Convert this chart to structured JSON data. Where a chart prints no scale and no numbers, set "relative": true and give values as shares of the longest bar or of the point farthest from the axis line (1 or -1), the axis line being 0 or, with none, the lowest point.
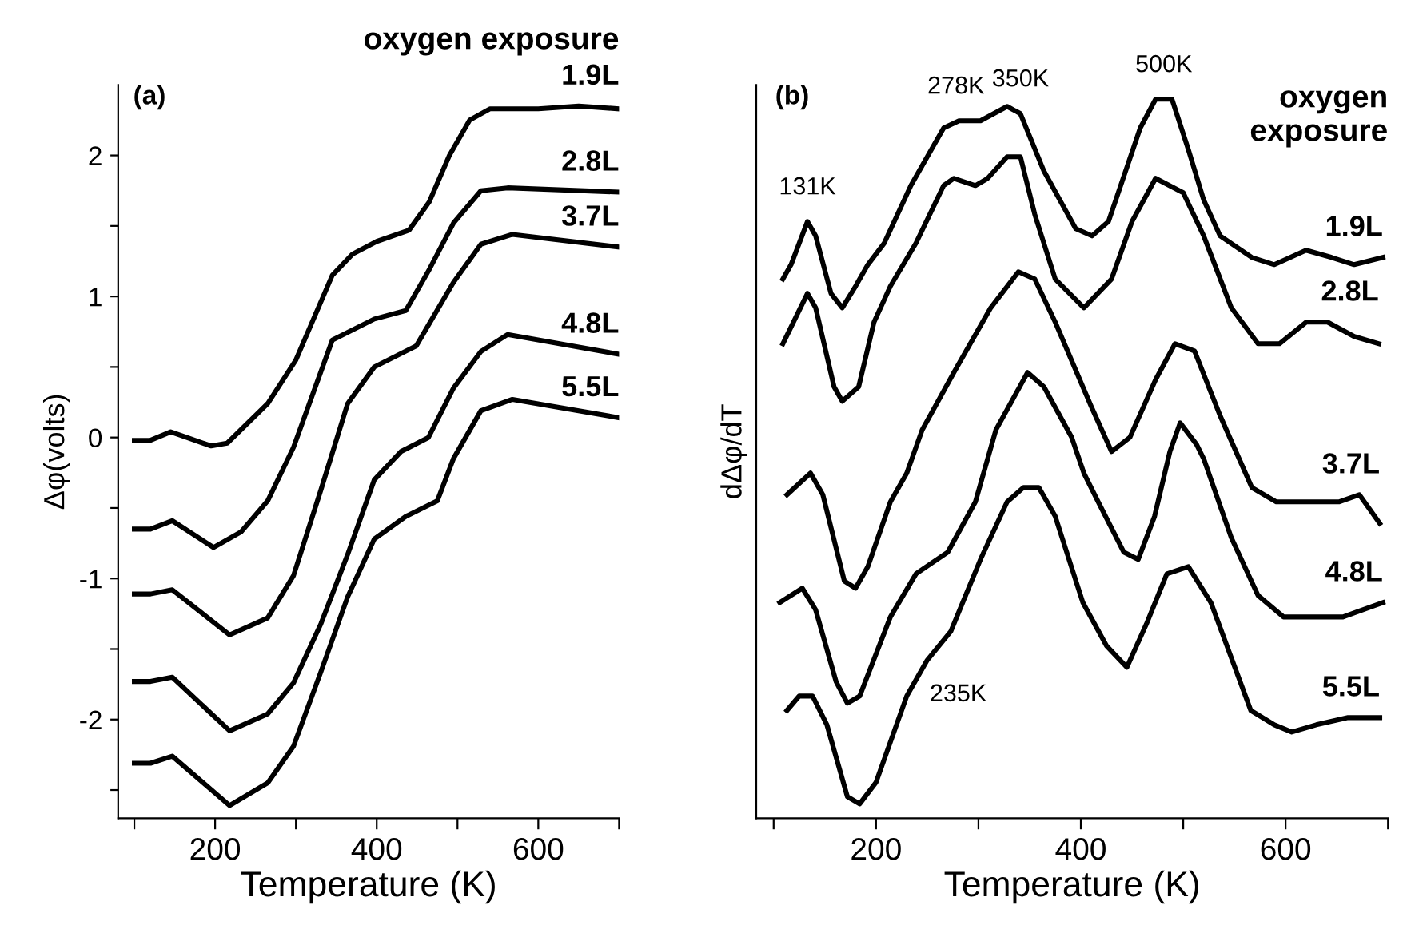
{
  "chart_data": [
    {
      "type": "line",
      "title": "oxygen exposure",
      "ylabel": "Δφ(volts)",
      "xlabel": "Temperature (K)",
      "xlim": [
        80,
        700
      ],
      "ylim": [
        -2.7,
        2.5
      ],
      "xticks": [
        {
          "value": 100,
          "label": null
        },
        200,
        {
          "value": 300,
          "label": null
        },
        400,
        {
          "value": 500,
          "label": null
        },
        600,
        {
          "value": 700,
          "label": null
        }
      ],
      "yticks": [
        {
          "value": -2.5,
          "label": null
        },
        -2,
        {
          "value": -1.5,
          "label": null
        },
        -1,
        {
          "value": -0.5,
          "label": null
        },
        0,
        {
          "value": 0.5,
          "label": null
        },
        1,
        {
          "value": 1.5,
          "label": null
        },
        2
      ],
      "grid": false,
      "legend": false,
      "marker": "none",
      "line_style": "solid",
      "annotations": [
        "(a)"
      ],
      "series": [
        {
          "name": "1.9L",
          "color": "#000000",
          "x": [
            100,
            120,
            145,
            165,
            195,
            215,
            240,
            265,
            300,
            345,
            370,
            400,
            440,
            465,
            490,
            515,
            540,
            600,
            650,
            700
          ],
          "values": [
            -0.02,
            -0.02,
            0.04,
            0.0,
            -0.06,
            -0.04,
            0.1,
            0.24,
            0.55,
            1.15,
            1.3,
            1.39,
            1.47,
            1.67,
            2.0,
            2.25,
            2.33,
            2.33,
            2.35,
            2.33
          ]
        },
        {
          "name": "2.8L",
          "color": "#000000",
          "x": [
            100,
            120,
            147,
            198,
            232,
            265,
            297,
            345,
            397,
            436,
            464,
            495,
            529,
            562,
            700
          ],
          "values": [
            -0.65,
            -0.65,
            -0.59,
            -0.78,
            -0.67,
            -0.45,
            -0.07,
            0.69,
            0.84,
            0.9,
            1.18,
            1.52,
            1.75,
            1.77,
            1.74
          ]
        },
        {
          "name": "3.7L",
          "color": "#000000",
          "x": [
            100,
            120,
            147,
            218,
            265,
            297,
            331,
            364,
            397,
            449,
            495,
            529,
            568,
            700
          ],
          "values": [
            -1.11,
            -1.11,
            -1.08,
            -1.4,
            -1.28,
            -0.98,
            -0.37,
            0.24,
            0.5,
            0.65,
            1.1,
            1.37,
            1.44,
            1.35
          ]
        },
        {
          "name": "4.8L",
          "color": "#000000",
          "x": [
            100,
            120,
            147,
            218,
            265,
            297,
            331,
            364,
            397,
            430,
            464,
            495,
            529,
            562,
            700
          ],
          "values": [
            -1.73,
            -1.73,
            -1.7,
            -2.08,
            -1.96,
            -1.74,
            -1.32,
            -0.83,
            -0.3,
            -0.1,
            0.0,
            0.35,
            0.61,
            0.73,
            0.59
          ]
        },
        {
          "name": "5.5L",
          "color": "#000000",
          "x": [
            100,
            120,
            147,
            218,
            265,
            297,
            331,
            364,
            397,
            436,
            475,
            495,
            529,
            568,
            700
          ],
          "values": [
            -2.31,
            -2.31,
            -2.26,
            -2.61,
            -2.45,
            -2.19,
            -1.66,
            -1.13,
            -0.72,
            -0.56,
            -0.45,
            -0.15,
            0.19,
            0.27,
            0.14
          ]
        }
      ]
    },
    {
      "type": "line",
      "relative": true,
      "title": "oxygen\nexposure",
      "ylabel": "dΔφ/dT",
      "xlabel": "Temperature (K)",
      "xlim": [
        83,
        700
      ],
      "xticks": [
        {
          "value": 100,
          "label": null
        },
        200,
        {
          "value": 300,
          "label": null
        },
        400,
        {
          "value": 500,
          "label": null
        },
        600,
        {
          "value": 700,
          "label": null
        }
      ],
      "tick_labels": "x",
      "grid": false,
      "legend": false,
      "marker": "none",
      "line_style": "solid",
      "annotations": [
        "(b)",
        {
          "text": "131K",
          "x": 133,
          "y": 0.83
        },
        {
          "text": "278K",
          "x": 278,
          "y": 0.97
        },
        {
          "text": "350K",
          "x": 341,
          "y": 0.98
        },
        {
          "text": "500K",
          "x": 481,
          "y": 1.0
        },
        {
          "text": "235K",
          "x": 235,
          "y": 0.19
        }
      ],
      "series": [
        {
          "name": "1.9L",
          "color": "#000000",
          "x": [
            109,
            117,
            133,
            141,
            156,
            167,
            180,
            192,
            208,
            234,
            266,
            281,
            302,
            328,
            341,
            364,
            395,
            411,
            427,
            458,
            473,
            489,
            505,
            520,
            536,
            567,
            589,
            620,
            645,
            667,
            695
          ],
          "values": [
            0.75,
            0.77,
            0.83,
            0.81,
            0.73,
            0.71,
            0.74,
            0.77,
            0.8,
            0.88,
            0.96,
            0.97,
            0.97,
            0.99,
            0.98,
            0.9,
            0.82,
            0.81,
            0.83,
            0.96,
            1.0,
            1.0,
            0.93,
            0.86,
            0.81,
            0.78,
            0.77,
            0.79,
            0.78,
            0.77,
            0.78
          ]
        },
        {
          "name": "2.8L",
          "color": "#000000",
          "x": [
            109,
            133,
            141,
            159,
            167,
            183,
            198,
            214,
            239,
            266,
            276,
            297,
            309,
            328,
            341,
            355,
            375,
            403,
            430,
            450,
            473,
            500,
            520,
            547,
            573,
            594,
            620,
            641,
            667,
            691
          ],
          "values": [
            0.66,
            0.73,
            0.71,
            0.6,
            0.58,
            0.6,
            0.69,
            0.74,
            0.8,
            0.88,
            0.89,
            0.88,
            0.89,
            0.92,
            0.92,
            0.84,
            0.75,
            0.71,
            0.75,
            0.83,
            0.89,
            0.87,
            0.81,
            0.71,
            0.66,
            0.66,
            0.69,
            0.69,
            0.67,
            0.66
          ]
        },
        {
          "name": "3.7L",
          "color": "#000000",
          "x": [
            113,
            136,
            148,
            169,
            180,
            192,
            214,
            230,
            245,
            276,
            312,
            339,
            355,
            375,
            411,
            430,
            448,
            473,
            492,
            511,
            536,
            567,
            591,
            625,
            652,
            672,
            692
          ],
          "values": [
            0.45,
            0.48,
            0.45,
            0.33,
            0.32,
            0.35,
            0.44,
            0.48,
            0.54,
            0.62,
            0.71,
            0.76,
            0.75,
            0.69,
            0.57,
            0.51,
            0.53,
            0.61,
            0.66,
            0.65,
            0.56,
            0.46,
            0.44,
            0.44,
            0.44,
            0.45,
            0.41
          ]
        },
        {
          "name": "4.8L",
          "color": "#000000",
          "x": [
            106,
            128,
            141,
            161,
            172,
            184,
            214,
            239,
            270,
            297,
            317,
            348,
            364,
            391,
            403,
            417,
            442,
            456,
            472,
            487,
            497,
            513,
            520,
            547,
            573,
            598,
            625,
            656,
            695
          ],
          "values": [
            0.3,
            0.32,
            0.29,
            0.19,
            0.16,
            0.17,
            0.28,
            0.34,
            0.37,
            0.44,
            0.54,
            0.62,
            0.6,
            0.53,
            0.48,
            0.44,
            0.37,
            0.36,
            0.42,
            0.51,
            0.55,
            0.52,
            0.5,
            0.39,
            0.31,
            0.28,
            0.28,
            0.28,
            0.3
          ]
        },
        {
          "name": "5.5L",
          "color": "#000000",
          "x": [
            113,
            125,
            138,
            152,
            172,
            184,
            200,
            230,
            250,
            273,
            302,
            328,
            344,
            359,
            375,
            402,
            425,
            445,
            464,
            484,
            505,
            527,
            566,
            589,
            606,
            630,
            661,
            692
          ],
          "values": [
            0.15,
            0.17,
            0.17,
            0.13,
            0.03,
            0.02,
            0.05,
            0.17,
            0.22,
            0.26,
            0.36,
            0.44,
            0.46,
            0.46,
            0.42,
            0.3,
            0.24,
            0.21,
            0.27,
            0.34,
            0.35,
            0.3,
            0.15,
            0.13,
            0.12,
            0.13,
            0.14,
            0.14
          ]
        }
      ]
    }
  ]
}
